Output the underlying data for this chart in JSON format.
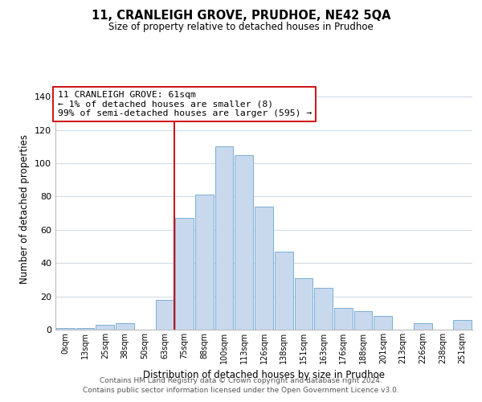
{
  "title": "11, CRANLEIGH GROVE, PRUDHOE, NE42 5QA",
  "subtitle": "Size of property relative to detached houses in Prudhoe",
  "xlabel": "Distribution of detached houses by size in Prudhoe",
  "ylabel": "Number of detached properties",
  "bar_color": "#c8d9ee",
  "bar_edge_color": "#7aafd4",
  "bin_labels": [
    "0sqm",
    "13sqm",
    "25sqm",
    "38sqm",
    "50sqm",
    "63sqm",
    "75sqm",
    "88sqm",
    "100sqm",
    "113sqm",
    "126sqm",
    "138sqm",
    "151sqm",
    "163sqm",
    "176sqm",
    "188sqm",
    "201sqm",
    "213sqm",
    "226sqm",
    "238sqm",
    "251sqm"
  ],
  "bar_heights": [
    1,
    1,
    3,
    4,
    0,
    18,
    67,
    81,
    110,
    105,
    74,
    47,
    31,
    25,
    13,
    11,
    8,
    0,
    4,
    0,
    6
  ],
  "vline_x": 5.5,
  "vline_color": "#cc0000",
  "ylim": [
    0,
    145
  ],
  "yticks": [
    0,
    20,
    40,
    60,
    80,
    100,
    120,
    140
  ],
  "annotation_title": "11 CRANLEIGH GROVE: 61sqm",
  "annotation_line1": "← 1% of detached houses are smaller (8)",
  "annotation_line2": "99% of semi-detached houses are larger (595) →",
  "footer1": "Contains HM Land Registry data © Crown copyright and database right 2024.",
  "footer2": "Contains public sector information licensed under the Open Government Licence v3.0.",
  "background_color": "#ffffff",
  "grid_color": "#d0dce8"
}
